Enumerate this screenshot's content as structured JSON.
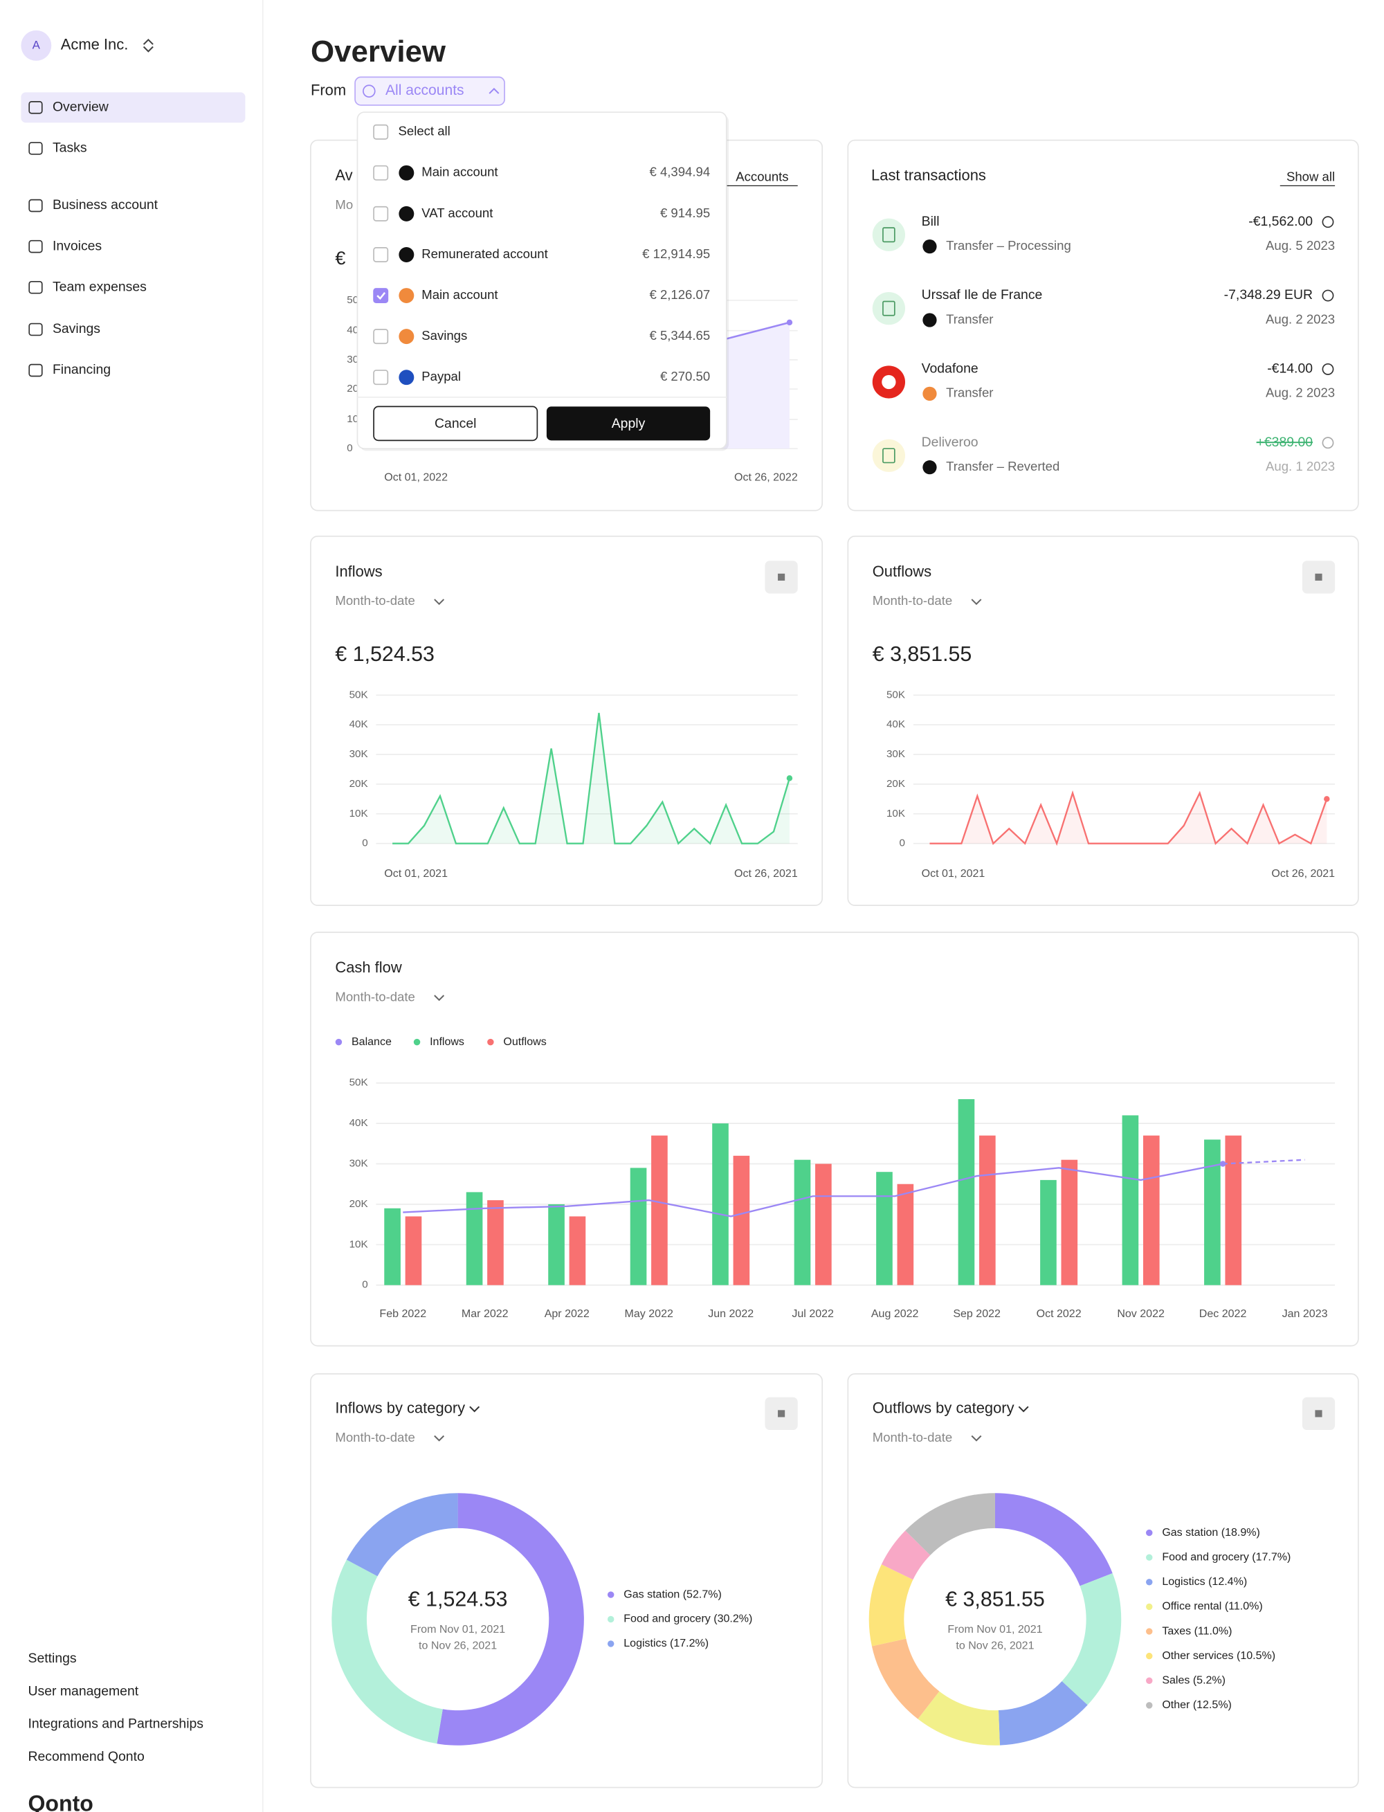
{
  "sidebar": {
    "avatar": "A",
    "org": "Acme Inc.",
    "nav": [
      "Overview",
      "Tasks",
      "Business account",
      "Invoices",
      "Team expenses",
      "Savings",
      "Financing"
    ],
    "footer": [
      "Settings",
      "User management",
      "Integrations and Partnerships",
      "Recommend Qonto"
    ],
    "logo": "Qonto"
  },
  "header": {
    "title": "Overview",
    "from_label": "From",
    "account_selector": "All accounts"
  },
  "dropdown": {
    "select_all": "Select all",
    "accounts": [
      {
        "name": "Main account",
        "amount": "€ 4,394.94",
        "checked": false,
        "icon_color": "#111111"
      },
      {
        "name": "VAT account",
        "amount": "€ 914.95",
        "checked": false,
        "icon_color": "#111111"
      },
      {
        "name": "Remunerated account",
        "amount": "€ 12,914.95",
        "checked": false,
        "icon_color": "#111111"
      },
      {
        "name": "Main account",
        "amount": "€ 2,126.07",
        "checked": true,
        "icon_color": "#f08a3c"
      },
      {
        "name": "Savings",
        "amount": "€ 5,344.65",
        "checked": false,
        "icon_color": "#f08a3c"
      },
      {
        "name": "Paypal",
        "amount": "€ 270.50",
        "checked": false,
        "icon_color": "#1f4fbf"
      }
    ],
    "cancel": "Cancel",
    "apply": "Apply"
  },
  "balance_card": {
    "title_fragment": "Av",
    "subtitle_fragment": "Mo",
    "currency_fragment": "€",
    "link_fragment": "Accounts",
    "y_tick_fragments": [
      "50",
      "40",
      "30",
      "20",
      "10",
      "0"
    ],
    "x_start": "Oct 01, 2022",
    "x_end": "Oct 26, 2022"
  },
  "transactions": {
    "title": "Last transactions",
    "show_all": "Show all",
    "items": [
      {
        "name": "Bill",
        "status": "Transfer – Processing",
        "amount": "-€1,562.00",
        "date": "Aug. 5 2023"
      },
      {
        "name": "Urssaf Ile de France",
        "status": "Transfer",
        "amount": "-7,348.29 EUR",
        "date": "Aug. 2 2023"
      },
      {
        "name": "Vodafone",
        "status": "Transfer",
        "amount": "-€14.00",
        "date": "Aug. 2 2023"
      },
      {
        "name": "Deliveroo",
        "status": "Transfer – Reverted",
        "amount": "+€389.00",
        "date": "Aug. 1 2023"
      }
    ]
  },
  "inflows": {
    "title": "Inflows",
    "period": "Month-to-date",
    "total": "€ 1,524.53",
    "chart_data": {
      "type": "line",
      "color": "#4fd18b",
      "categories": [
        "Oct 01, 2021",
        null,
        null,
        null,
        null,
        null,
        null,
        null,
        null,
        null,
        null,
        null,
        null,
        null,
        null,
        null,
        null,
        null,
        null,
        null,
        null,
        null,
        null,
        null,
        null,
        "Oct 26, 2021"
      ],
      "values": [
        0,
        0,
        6000,
        16000,
        0,
        0,
        0,
        12000,
        0,
        0,
        32000,
        0,
        0,
        44000,
        0,
        0,
        6000,
        14000,
        0,
        5000,
        0,
        13000,
        0,
        0,
        4000,
        22000
      ],
      "ylim": [
        0,
        50000
      ],
      "yticks": [
        0,
        {
          "value": 10000,
          "label": "10K"
        },
        {
          "value": 20000,
          "label": "20K"
        },
        {
          "value": 30000,
          "label": "30K"
        },
        {
          "value": 40000,
          "label": "40K"
        },
        {
          "value": 50000,
          "label": "50K"
        }
      ]
    }
  },
  "outflows": {
    "title": "Outflows",
    "period": "Month-to-date",
    "total": "€ 3,851.55",
    "chart_data": {
      "type": "line",
      "color": "#f87171",
      "categories": [
        "Oct 01, 2021",
        null,
        null,
        null,
        null,
        null,
        null,
        null,
        null,
        null,
        null,
        null,
        null,
        null,
        null,
        null,
        null,
        null,
        null,
        null,
        null,
        null,
        null,
        null,
        null,
        "Oct 26, 2021"
      ],
      "values": [
        0,
        0,
        0,
        16000,
        0,
        5000,
        0,
        13000,
        0,
        17000,
        0,
        0,
        0,
        0,
        0,
        0,
        6000,
        17000,
        0,
        5000,
        0,
        13000,
        0,
        3000,
        0,
        15000
      ],
      "ylim": [
        0,
        50000
      ],
      "yticks": [
        0,
        {
          "value": 10000,
          "label": "10K"
        },
        {
          "value": 20000,
          "label": "20K"
        },
        {
          "value": 30000,
          "label": "30K"
        },
        {
          "value": 40000,
          "label": "40K"
        },
        {
          "value": 50000,
          "label": "50K"
        }
      ]
    }
  },
  "cash_flow": {
    "title": "Cash flow",
    "period": "Month-to-date",
    "chart_data": {
      "type": "bar",
      "categories": [
        "Feb 2022",
        "Mar 2022",
        "Apr 2022",
        "May 2022",
        "Jun 2022",
        "Jul 2022",
        "Aug 2022",
        "Sep 2022",
        "Oct 2022",
        "Nov 2022",
        "Dec 2022",
        "Jan 2023"
      ],
      "series": [
        {
          "name": "Balance",
          "color": "#9b87f5",
          "type": "line",
          "values": [
            18000,
            19000,
            19500,
            21000,
            17000,
            22000,
            22000,
            27000,
            29000,
            26000,
            30000,
            31000
          ]
        },
        {
          "name": "Inflows",
          "color": "#4fd18b",
          "type": "bar",
          "values": [
            19000,
            23000,
            20000,
            29000,
            40000,
            31000,
            28000,
            46000,
            26000,
            42000,
            36000,
            null
          ]
        },
        {
          "name": "Outflows",
          "color": "#f87171",
          "type": "bar",
          "values": [
            17000,
            21000,
            17000,
            37000,
            32000,
            30000,
            25000,
            37000,
            31000,
            37000,
            37000,
            null
          ]
        }
      ],
      "ylim": [
        0,
        50000
      ],
      "yticks": [
        0,
        {
          "value": 10000,
          "label": "10K"
        },
        {
          "value": 20000,
          "label": "20K"
        },
        {
          "value": 30000,
          "label": "30K"
        },
        {
          "value": 40000,
          "label": "40K"
        },
        {
          "value": 50000,
          "label": "50K"
        }
      ]
    }
  },
  "inflows_by_category": {
    "title": "Inflows by category",
    "period": "Month-to-date",
    "center_value": "€ 1,524.53",
    "center_from": "From Nov 01, 2021",
    "center_to": "to Nov 26, 2021",
    "chart_data": {
      "type": "donut",
      "values": [
        52.7,
        30.2,
        17.2
      ],
      "value_labels": [
        "Gas station (52.7%)",
        "Food and grocery (30.2%)",
        "Logistics (17.2%)"
      ],
      "colors": [
        "#9b87f5",
        "#b3f0da",
        "#8aa4f0"
      ]
    }
  },
  "outflows_by_category": {
    "title": "Outflows by category",
    "period": "Month-to-date",
    "center_value": "€ 3,851.55",
    "center_from": "From Nov 01, 2021",
    "center_to": "to Nov 26, 2021",
    "chart_data": {
      "type": "donut",
      "values": [
        18.9,
        17.7,
        12.4,
        11.0,
        11.0,
        10.5,
        5.2,
        12.5
      ],
      "value_labels": [
        "Gas station (18.9%)",
        "Food and grocery (17.7%)",
        "Logistics (12.4%)",
        "Office rental (11.0%)",
        "Taxes (11.0%)",
        "Other services (10.5%)",
        "Sales (5.2%)",
        "Other (12.5%)"
      ],
      "colors": [
        "#9b87f5",
        "#b3f0da",
        "#8aa4f0",
        "#f2f08a",
        "#fdbf8c",
        "#fde47a",
        "#f8a8c6",
        "#bdbdbd"
      ]
    }
  }
}
